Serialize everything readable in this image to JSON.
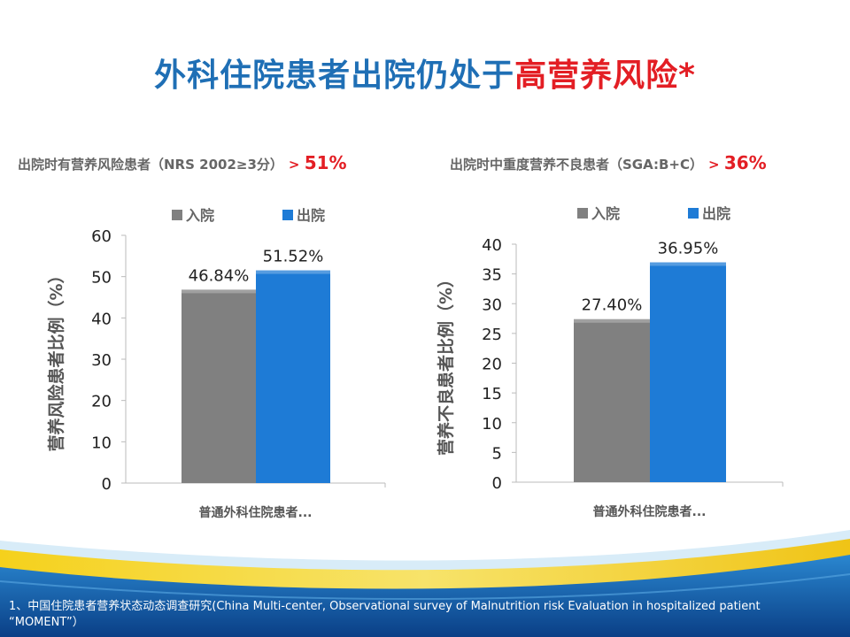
{
  "title": {
    "main": "外科住院患者出院仍处于",
    "highlight": "高营养风险*"
  },
  "subtitles": [
    {
      "text": "出院时有营养风险患者（NRS 2002≥3分）",
      "gt": ">",
      "value": "51%"
    },
    {
      "text": "出院时中重度营养不良患者（SGA:B+C）",
      "gt": ">",
      "value": "36%"
    }
  ],
  "chart_data": [
    {
      "type": "bar",
      "categories": [
        "普通外科住院患者..."
      ],
      "series": [
        {
          "name": "入院",
          "values": [
            46.84
          ],
          "color": "#808080"
        },
        {
          "name": "出院",
          "values": [
            51.52
          ],
          "color": "#1e7bd6"
        }
      ],
      "data_labels": [
        "46.84%",
        "51.52%"
      ],
      "ylabel": "营养风险患者比例（%）",
      "ylim": [
        0,
        60
      ],
      "yticks": [
        0,
        10,
        20,
        30,
        40,
        50,
        60
      ],
      "legend": "top"
    },
    {
      "type": "bar",
      "categories": [
        "普通外科住院患者..."
      ],
      "series": [
        {
          "name": "入院",
          "values": [
            27.4
          ],
          "color": "#808080"
        },
        {
          "name": "出院",
          "values": [
            36.95
          ],
          "color": "#1e7bd6"
        }
      ],
      "data_labels": [
        "27.40%",
        "36.95%"
      ],
      "ylabel": "营养不良患者比例（%）",
      "ylim": [
        0,
        40
      ],
      "yticks": [
        0,
        5,
        10,
        15,
        20,
        25,
        30,
        35,
        40
      ],
      "legend": "top"
    }
  ],
  "footnote": "1、中国住院患者营养状态动态调查研究(China Multi-center, Observational survey of Malnutrition risk Evaluation in hospitalized patient “MOMENT”）"
}
